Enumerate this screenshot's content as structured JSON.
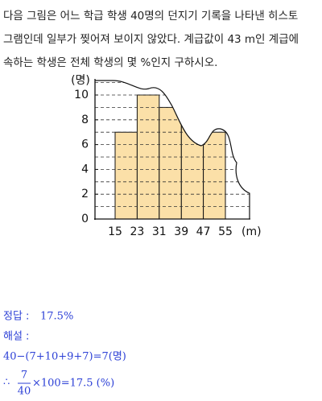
{
  "question": [
    "다음 그림은 어느 학급 학생 40명의 던지기 기록을 나타낸 히스토",
    "그램인데 일부가 찢어져 보이지 않았다. 계급값이 43 m인 계급에",
    "속하는 학생은 전체 학생의 몇 %인지 구하시오."
  ],
  "figure": {
    "type": "histogram",
    "y_label": "(명)",
    "x_unit": "(m)",
    "bins": [
      15,
      23,
      31,
      39,
      47,
      55
    ],
    "values": [
      7,
      10,
      9,
      null,
      7
    ],
    "ylim": [
      0,
      11
    ],
    "yticks": [
      0,
      2,
      4,
      6,
      8,
      10
    ],
    "color": "#fbe0a8"
  },
  "answer": {
    "label": "정답 :",
    "value": "17.5%",
    "explanation_label": "해설 :",
    "line1": "40−(7+10+9+7)=7(명)",
    "therefore": "∴",
    "numerator": "7",
    "denominator": "40",
    "rest": "×100=17.5 (%)"
  }
}
